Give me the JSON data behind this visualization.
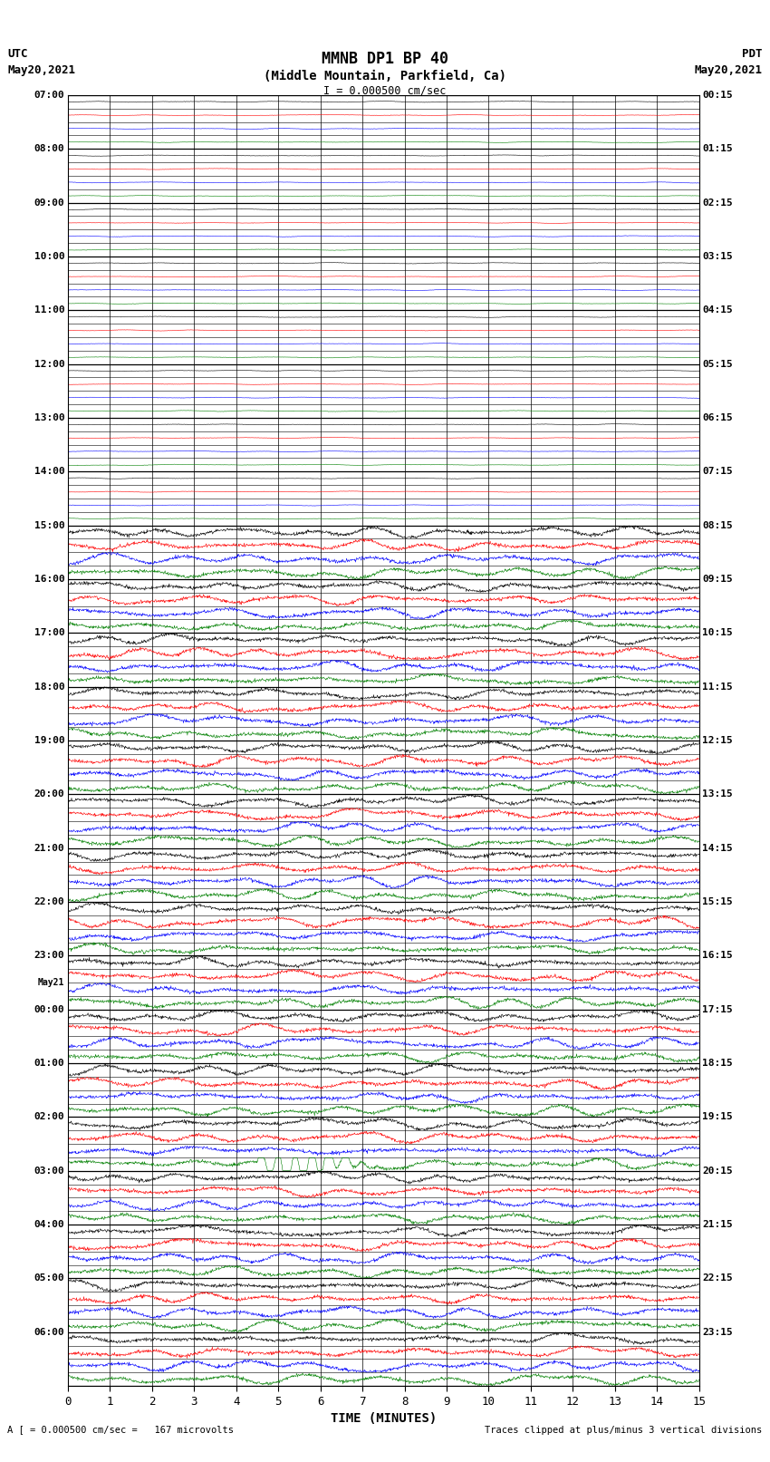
{
  "title_line1": "MMNB DP1 BP 40",
  "title_line2": "(Middle Mountain, Parkfield, Ca)",
  "scale_label": "I = 0.000500 cm/sec",
  "utc_label": "UTC",
  "utc_date": "May20,2021",
  "pdt_label": "PDT",
  "pdt_date": "May20,2021",
  "xlabel": "TIME (MINUTES)",
  "footer_left": "A [ = 0.000500 cm/sec =   167 microvolts",
  "footer_right": "Traces clipped at plus/minus 3 vertical divisions",
  "utc_hours": [
    "07:00",
    "08:00",
    "09:00",
    "10:00",
    "11:00",
    "12:00",
    "13:00",
    "14:00",
    "15:00",
    "16:00",
    "17:00",
    "18:00",
    "19:00",
    "20:00",
    "21:00",
    "22:00",
    "23:00",
    "00:00",
    "01:00",
    "02:00",
    "03:00",
    "04:00",
    "05:00",
    "06:00"
  ],
  "pdt_hours": [
    "00:15",
    "01:15",
    "02:15",
    "03:15",
    "04:15",
    "05:15",
    "06:15",
    "07:15",
    "08:15",
    "09:15",
    "10:15",
    "11:15",
    "12:15",
    "13:15",
    "14:15",
    "15:15",
    "16:15",
    "17:15",
    "18:15",
    "19:15",
    "20:15",
    "21:15",
    "22:15",
    "23:15"
  ],
  "may21_after_hour_idx": 16,
  "n_hours": 24,
  "n_traces_per_hour": 4,
  "colors": [
    "black",
    "red",
    "blue",
    "green"
  ],
  "quiet_hours": 8,
  "figsize": [
    8.5,
    16.13
  ],
  "dpi": 100
}
